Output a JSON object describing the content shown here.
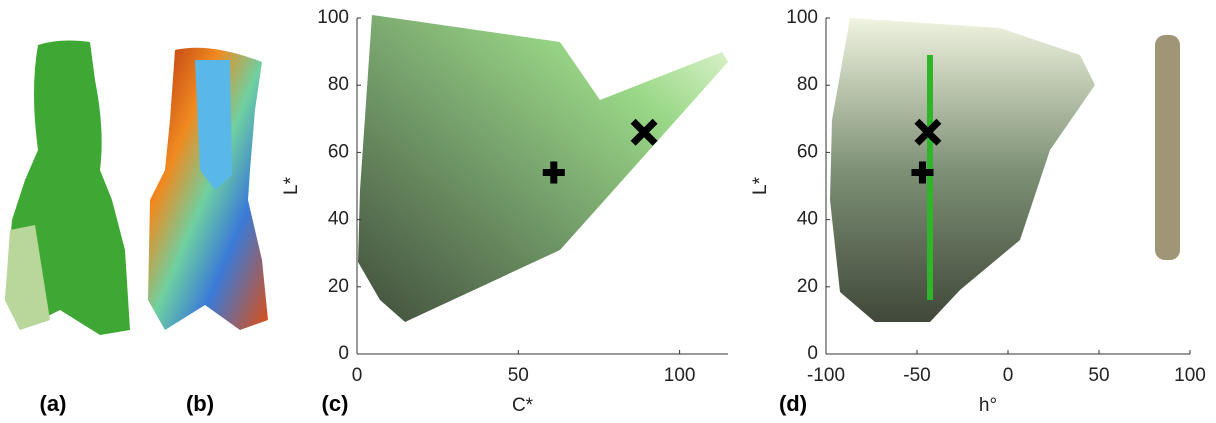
{
  "panels": [
    "(a)",
    "(b)"
  ],
  "chart_data": [
    {
      "type": "scatter",
      "panel_label": "(c)",
      "x_label": "C*",
      "y_label": "L*",
      "xlim": [
        0,
        115
      ],
      "ylim": [
        0,
        100
      ],
      "xticks": [
        0,
        50,
        100
      ],
      "yticks": [
        0,
        20,
        40,
        60,
        80,
        100
      ],
      "points": [
        {
          "x": 61,
          "y": 54,
          "marker": "plus"
        },
        {
          "x": 89,
          "y": 66,
          "marker": "cross"
        }
      ],
      "color": "#000000"
    },
    {
      "type": "scatter",
      "panel_label": "(d)",
      "x_label": "h°",
      "y_label": "L*",
      "xlim": [
        -100,
        100
      ],
      "ylim": [
        0,
        100
      ],
      "xticks": [
        -100,
        -50,
        0,
        50,
        100
      ],
      "yticks": [
        0,
        20,
        40,
        60,
        80,
        100
      ],
      "points": [
        {
          "x": -47,
          "y": 54,
          "marker": "plus"
        },
        {
          "x": -44,
          "y": 66,
          "marker": "cross"
        }
      ],
      "color": "#000000"
    }
  ]
}
